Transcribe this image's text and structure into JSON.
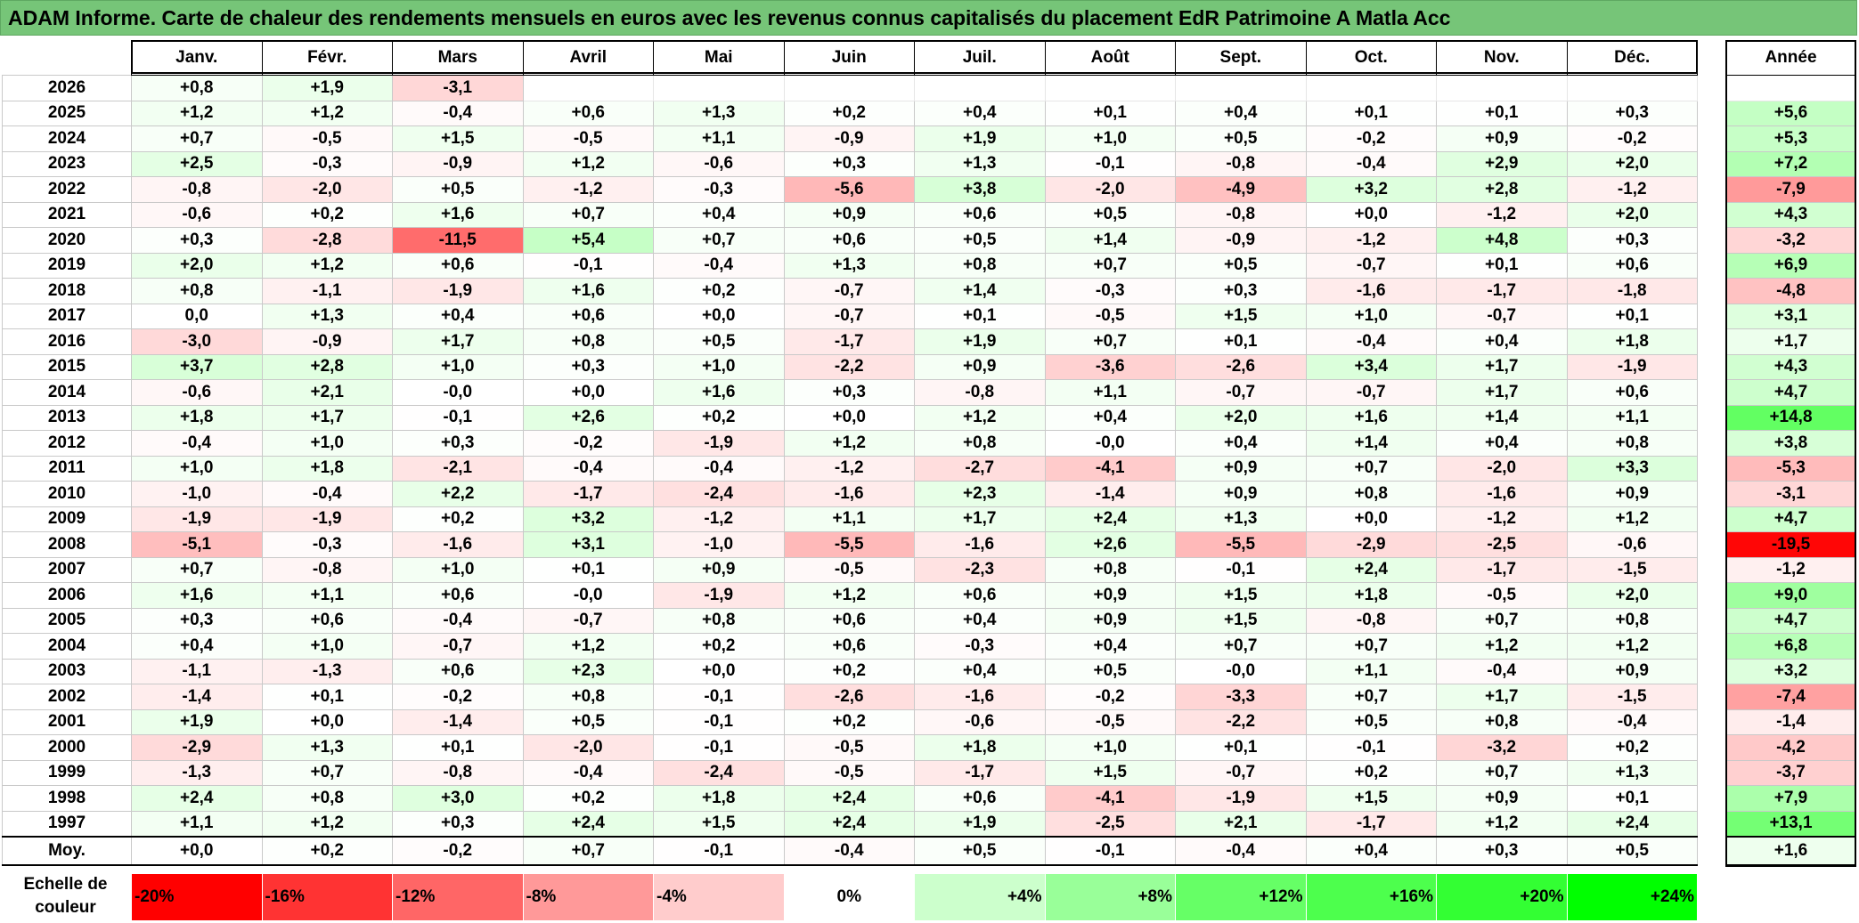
{
  "title": "ADAM Informe. Carte de chaleur des rendements mensuels en euros avec les revenus connus capitalisés du placement EdR Patrimoine A Matla Acc",
  "chart_data": {
    "type": "heatmap",
    "months": [
      "Janv.",
      "Févr.",
      "Mars",
      "Avril",
      "Mai",
      "Juin",
      "Juil.",
      "Août",
      "Sept.",
      "Oct.",
      "Nov.",
      "Déc."
    ],
    "year_header": "Année",
    "rows": [
      {
        "year": "2026",
        "values": [
          "+0,8",
          "+1,9",
          "-3,1",
          "",
          "",
          "",
          "",
          "",
          "",
          "",
          "",
          ""
        ],
        "annual": ""
      },
      {
        "year": "2025",
        "values": [
          "+1,2",
          "+1,2",
          "-0,4",
          "+0,6",
          "+1,3",
          "+0,2",
          "+0,4",
          "+0,1",
          "+0,4",
          "+0,1",
          "+0,1",
          "+0,3"
        ],
        "annual": "+5,6"
      },
      {
        "year": "2024",
        "values": [
          "+0,7",
          "-0,5",
          "+1,5",
          "-0,5",
          "+1,1",
          "-0,9",
          "+1,9",
          "+1,0",
          "+0,5",
          "-0,2",
          "+0,9",
          "-0,2"
        ],
        "annual": "+5,3"
      },
      {
        "year": "2023",
        "values": [
          "+2,5",
          "-0,3",
          "-0,9",
          "+1,2",
          "-0,6",
          "+0,3",
          "+1,3",
          "-0,1",
          "-0,8",
          "-0,4",
          "+2,9",
          "+2,0"
        ],
        "annual": "+7,2"
      },
      {
        "year": "2022",
        "values": [
          "-0,8",
          "-2,0",
          "+0,5",
          "-1,2",
          "-0,3",
          "-5,6",
          "+3,8",
          "-2,0",
          "-4,9",
          "+3,2",
          "+2,8",
          "-1,2"
        ],
        "annual": "-7,9"
      },
      {
        "year": "2021",
        "values": [
          "-0,6",
          "+0,2",
          "+1,6",
          "+0,7",
          "+0,4",
          "+0,9",
          "+0,6",
          "+0,5",
          "-0,8",
          "+0,0",
          "-1,2",
          "+2,0"
        ],
        "annual": "+4,3"
      },
      {
        "year": "2020",
        "values": [
          "+0,3",
          "-2,8",
          "-11,5",
          "+5,4",
          "+0,7",
          "+0,6",
          "+0,5",
          "+1,4",
          "-0,9",
          "-1,2",
          "+4,8",
          "+0,3"
        ],
        "annual": "-3,2"
      },
      {
        "year": "2019",
        "values": [
          "+2,0",
          "+1,2",
          "+0,6",
          "-0,1",
          "-0,4",
          "+1,3",
          "+0,8",
          "+0,7",
          "+0,5",
          "-0,7",
          "+0,1",
          "+0,6"
        ],
        "annual": "+6,9"
      },
      {
        "year": "2018",
        "values": [
          "+0,8",
          "-1,1",
          "-1,9",
          "+1,6",
          "+0,2",
          "-0,7",
          "+1,4",
          "-0,3",
          "+0,3",
          "-1,6",
          "-1,7",
          "-1,8"
        ],
        "annual": "-4,8"
      },
      {
        "year": "2017",
        "values": [
          "0,0",
          "+1,3",
          "+0,4",
          "+0,6",
          "+0,0",
          "-0,7",
          "+0,1",
          "-0,5",
          "+1,5",
          "+1,0",
          "-0,7",
          "+0,1"
        ],
        "annual": "+3,1"
      },
      {
        "year": "2016",
        "values": [
          "-3,0",
          "-0,9",
          "+1,7",
          "+0,8",
          "+0,5",
          "-1,7",
          "+1,9",
          "+0,7",
          "+0,1",
          "-0,4",
          "+0,4",
          "+1,8"
        ],
        "annual": "+1,7"
      },
      {
        "year": "2015",
        "values": [
          "+3,7",
          "+2,8",
          "+1,0",
          "+0,3",
          "+1,0",
          "-2,2",
          "+0,9",
          "-3,6",
          "-2,6",
          "+3,4",
          "+1,7",
          "-1,9"
        ],
        "annual": "+4,3"
      },
      {
        "year": "2014",
        "values": [
          "-0,6",
          "+2,1",
          "-0,0",
          "+0,0",
          "+1,6",
          "+0,3",
          "-0,8",
          "+1,1",
          "-0,7",
          "-0,7",
          "+1,7",
          "+0,6"
        ],
        "annual": "+4,7"
      },
      {
        "year": "2013",
        "values": [
          "+1,8",
          "+1,7",
          "-0,1",
          "+2,6",
          "+0,2",
          "+0,0",
          "+1,2",
          "+0,4",
          "+2,0",
          "+1,6",
          "+1,4",
          "+1,1"
        ],
        "annual": "+14,8"
      },
      {
        "year": "2012",
        "values": [
          "-0,4",
          "+1,0",
          "+0,3",
          "-0,2",
          "-1,9",
          "+1,2",
          "+0,8",
          "-0,0",
          "+0,4",
          "+1,4",
          "+0,4",
          "+0,8"
        ],
        "annual": "+3,8"
      },
      {
        "year": "2011",
        "values": [
          "+1,0",
          "+1,8",
          "-2,1",
          "-0,4",
          "-0,4",
          "-1,2",
          "-2,7",
          "-4,1",
          "+0,9",
          "+0,7",
          "-2,0",
          "+3,3"
        ],
        "annual": "-5,3"
      },
      {
        "year": "2010",
        "values": [
          "-1,0",
          "-0,4",
          "+2,2",
          "-1,7",
          "-2,4",
          "-1,6",
          "+2,3",
          "-1,4",
          "+0,9",
          "+0,8",
          "-1,6",
          "+0,9"
        ],
        "annual": "-3,1"
      },
      {
        "year": "2009",
        "values": [
          "-1,9",
          "-1,9",
          "+0,2",
          "+3,2",
          "-1,2",
          "+1,1",
          "+1,7",
          "+2,4",
          "+1,3",
          "+0,0",
          "-1,2",
          "+1,2"
        ],
        "annual": "+4,7"
      },
      {
        "year": "2008",
        "values": [
          "-5,1",
          "-0,3",
          "-1,6",
          "+3,1",
          "-1,0",
          "-5,5",
          "-1,6",
          "+2,6",
          "-5,5",
          "-2,9",
          "-2,5",
          "-0,6"
        ],
        "annual": "-19,5"
      },
      {
        "year": "2007",
        "values": [
          "+0,7",
          "-0,8",
          "+1,0",
          "+0,1",
          "+0,9",
          "-0,5",
          "-2,3",
          "+0,8",
          "-0,1",
          "+2,4",
          "-1,7",
          "-1,5"
        ],
        "annual": "-1,2"
      },
      {
        "year": "2006",
        "values": [
          "+1,6",
          "+1,1",
          "+0,6",
          "-0,0",
          "-1,9",
          "+1,2",
          "+0,6",
          "+0,9",
          "+1,5",
          "+1,8",
          "-0,5",
          "+2,0"
        ],
        "annual": "+9,0"
      },
      {
        "year": "2005",
        "values": [
          "+0,3",
          "+0,6",
          "-0,4",
          "-0,7",
          "+0,8",
          "+0,6",
          "+0,4",
          "+0,9",
          "+1,5",
          "-0,8",
          "+0,7",
          "+0,8"
        ],
        "annual": "+4,7"
      },
      {
        "year": "2004",
        "values": [
          "+0,4",
          "+1,0",
          "-0,7",
          "+1,2",
          "+0,2",
          "+0,6",
          "-0,3",
          "+0,4",
          "+0,7",
          "+0,7",
          "+1,2",
          "+1,2"
        ],
        "annual": "+6,8"
      },
      {
        "year": "2003",
        "values": [
          "-1,1",
          "-1,3",
          "+0,6",
          "+2,3",
          "+0,0",
          "+0,2",
          "+0,4",
          "+0,5",
          "-0,0",
          "+1,1",
          "-0,4",
          "+0,9"
        ],
        "annual": "+3,2"
      },
      {
        "year": "2002",
        "values": [
          "-1,4",
          "+0,1",
          "-0,2",
          "+0,8",
          "-0,1",
          "-2,6",
          "-1,6",
          "-0,2",
          "-3,3",
          "+0,7",
          "+1,7",
          "-1,5"
        ],
        "annual": "-7,4"
      },
      {
        "year": "2001",
        "values": [
          "+1,9",
          "+0,0",
          "-1,4",
          "+0,5",
          "-0,1",
          "+0,2",
          "-0,6",
          "-0,5",
          "-2,2",
          "+0,5",
          "+0,8",
          "-0,4"
        ],
        "annual": "-1,4"
      },
      {
        "year": "2000",
        "values": [
          "-2,9",
          "+1,3",
          "+0,1",
          "-2,0",
          "-0,1",
          "-0,5",
          "+1,8",
          "+1,0",
          "+0,1",
          "-0,1",
          "-3,2",
          "+0,2"
        ],
        "annual": "-4,2"
      },
      {
        "year": "1999",
        "values": [
          "-1,3",
          "+0,7",
          "-0,8",
          "-0,4",
          "-2,4",
          "-0,5",
          "-1,7",
          "+1,5",
          "-0,7",
          "+0,2",
          "+0,7",
          "+1,3"
        ],
        "annual": "-3,7"
      },
      {
        "year": "1998",
        "values": [
          "+2,4",
          "+0,8",
          "+3,0",
          "+0,2",
          "+1,8",
          "+2,4",
          "+0,6",
          "-4,1",
          "-1,9",
          "+1,5",
          "+0,9",
          "+0,1"
        ],
        "annual": "+7,9"
      },
      {
        "year": "1997",
        "values": [
          "+1,1",
          "+1,2",
          "+0,3",
          "+2,4",
          "+1,5",
          "+2,4",
          "+1,9",
          "-2,5",
          "+2,1",
          "-1,7",
          "+1,2",
          "+2,4"
        ],
        "annual": "+13,1"
      }
    ],
    "average": {
      "label": "Moy.",
      "values": [
        "+0,0",
        "+0,2",
        "-0,2",
        "+0,7",
        "-0,1",
        "-0,4",
        "+0,5",
        "-0,1",
        "-0,4",
        "+0,4",
        "+0,3",
        "+0,5"
      ],
      "annual": "+1,6"
    },
    "scale": {
      "label": "Echelle de couleur",
      "steps": [
        {
          "text": "-20%",
          "value": -20,
          "color": "#ff0000"
        },
        {
          "text": "-16%",
          "value": -16,
          "color": "#ff3333"
        },
        {
          "text": "-12%",
          "value": -12,
          "color": "#ff6666"
        },
        {
          "text": "-8%",
          "value": -8,
          "color": "#ff9999"
        },
        {
          "text": "-4%",
          "value": -4,
          "color": "#ffcccc"
        },
        {
          "text": "0%",
          "value": 0,
          "color": "#ffffff"
        },
        {
          "text": "+4%",
          "value": 4,
          "color": "#ccffcc"
        },
        {
          "text": "+8%",
          "value": 8,
          "color": "#99ff99"
        },
        {
          "text": "+12%",
          "value": 12,
          "color": "#66ff66"
        },
        {
          "text": "+16%",
          "value": 16,
          "color": "#4dff4d"
        },
        {
          "text": "+20%",
          "value": 20,
          "color": "#33ff33"
        },
        {
          "text": "+24%",
          "value": 24,
          "color": "#00ff00"
        }
      ]
    },
    "colors": {
      "title_bg": "#76c578",
      "negative_max": "#ff0000",
      "positive_max": "#00ff00"
    }
  }
}
